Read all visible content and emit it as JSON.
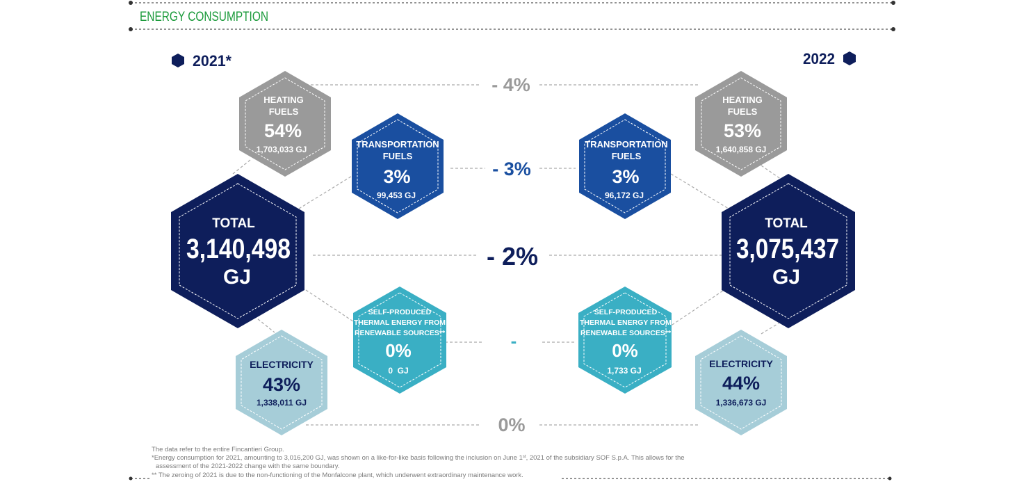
{
  "header": {
    "title": "ENERGY CONSUMPTION"
  },
  "years": {
    "left": "2021*",
    "right": "2022"
  },
  "left": {
    "heating": {
      "title1": "HEATING",
      "title2": "FUELS",
      "percent": "54%",
      "value": "1,703,033 GJ"
    },
    "transport": {
      "title1": "TRANSPORTATION",
      "title2": "FUELS",
      "percent": "3%",
      "value": "99,453 GJ"
    },
    "total": {
      "title": "TOTAL",
      "value": "3,140,498",
      "unit": "GJ"
    },
    "thermal": {
      "title1": "SELF-PRODUCED",
      "title2": "THERMAL ENERGY FROM",
      "title3": "RENEWABLE SOURCES**",
      "percent": "0%",
      "value": "0  GJ"
    },
    "electricity": {
      "title": "ELECTRICITY",
      "percent": "43%",
      "value": "1,338,011 GJ"
    }
  },
  "right": {
    "heating": {
      "title1": "HEATING",
      "title2": "FUELS",
      "percent": "53%",
      "value": "1,640,858 GJ"
    },
    "transport": {
      "title1": "TRANSPORTATION",
      "title2": "FUELS",
      "percent": "3%",
      "value": "96,172 GJ"
    },
    "total": {
      "title": "TOTAL",
      "value": "3,075,437",
      "unit": "GJ"
    },
    "thermal": {
      "title1": "SELF-PRODUCED",
      "title2": "THERMAL ENERGY FROM",
      "title3": "RENEWABLE SOURCES**",
      "percent": "0%",
      "value": "1,733 GJ"
    },
    "electricity": {
      "title": "ELECTRICITY",
      "percent": "44%",
      "value": "1,336,673 GJ"
    }
  },
  "changes": {
    "heating": "- 4%",
    "transport": "- 3%",
    "total": "- 2%",
    "thermal": "-",
    "electricity": "0%"
  },
  "colors": {
    "header_green": "#1a9a3a",
    "navy": "#0e1e5b",
    "blue": "#1a4fa0",
    "gray": "#9a9a9a",
    "cyan": "#3aafc4",
    "light_blue": "#a6cdd8"
  },
  "footnotes": {
    "line1": "The data refer to the entire Fincantieri Group.",
    "line2a": "*Energy consumption for 2021, amounting to 3,016,200 GJ, was shown on a like-for-like basis following the inclusion on June 1",
    "line2sup": "st",
    "line2b": ", 2021 of the subsidiary SOF S.p.A. This allows for the",
    "line3": "assessment of the 2021-2022 change with the same boundary.",
    "line4": "** The zeroing of 2021 is due to the non-functioning of the Monfalcone plant, which underwent extraordinary maintenance work."
  }
}
